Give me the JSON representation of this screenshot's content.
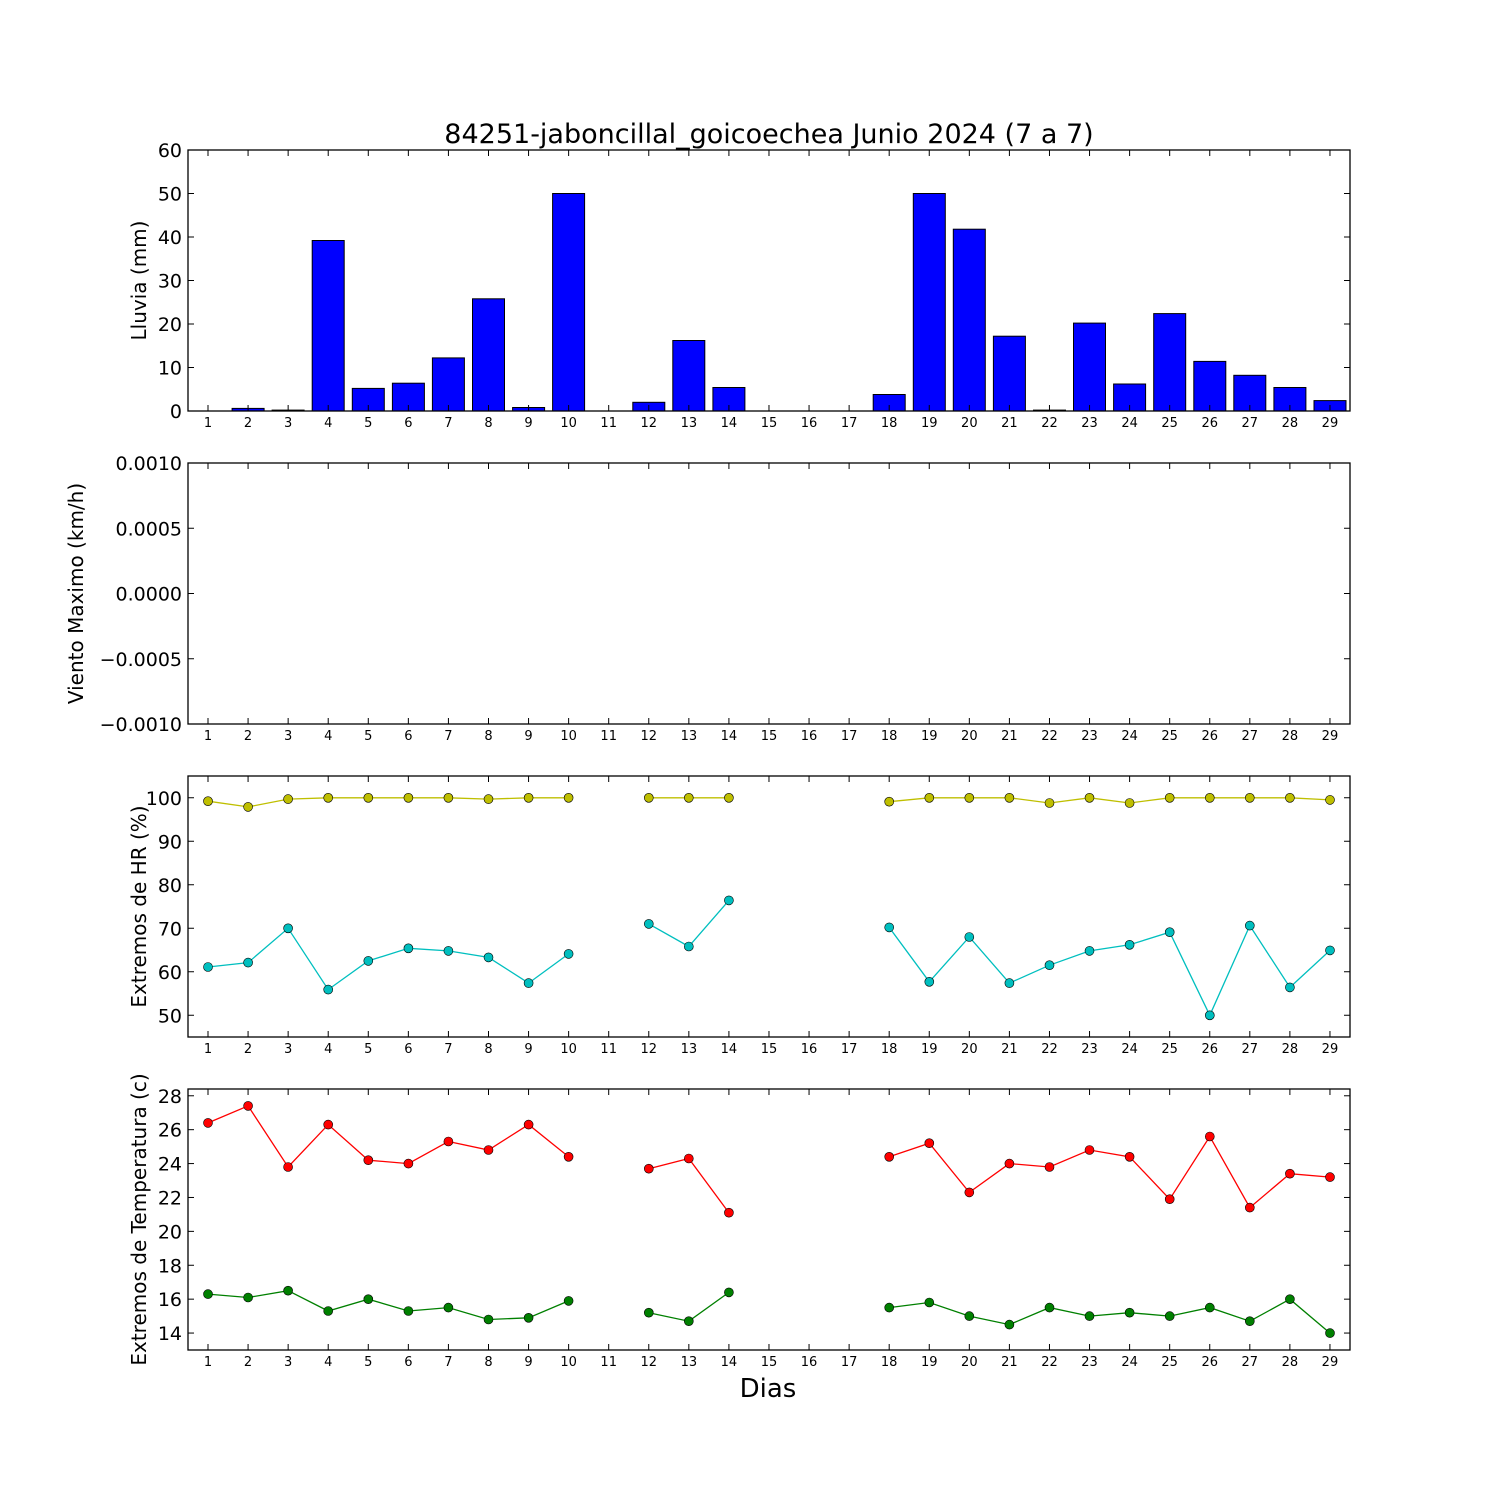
{
  "title": "84251-jaboncillal_goicoechea Junio 2024  (7 a 7)",
  "xlabel": "Dias",
  "chart_data": [
    {
      "type": "bar",
      "ylabel": "Lluvia (mm)",
      "ylim": [
        0,
        60
      ],
      "yticks": [
        "0",
        "10",
        "20",
        "30",
        "40",
        "50",
        "60"
      ],
      "categories": [
        "1",
        "2",
        "3",
        "4",
        "5",
        "6",
        "7",
        "8",
        "9",
        "10",
        "11",
        "12",
        "13",
        "14",
        "15",
        "16",
        "17",
        "18",
        "19",
        "20",
        "21",
        "22",
        "23",
        "24",
        "25",
        "26",
        "27",
        "28",
        "29"
      ],
      "values": [
        0,
        0.6,
        0.2,
        39.2,
        5.2,
        6.4,
        12.2,
        25.8,
        0.8,
        50.0,
        0,
        2.0,
        16.2,
        5.4,
        0,
        0,
        0,
        3.8,
        50.0,
        41.8,
        17.2,
        0.2,
        20.2,
        6.2,
        22.4,
        11.4,
        8.2,
        5.4,
        2.4
      ],
      "color": "#0000ff"
    },
    {
      "type": "line",
      "ylabel": "Viento Maximo (km/h)",
      "ylim": [
        -0.001,
        0.001
      ],
      "yticks": [
        "−0.0010",
        "−0.0005",
        "0.0000",
        "0.0005",
        "0.0010"
      ],
      "categories": [
        "1",
        "2",
        "3",
        "4",
        "5",
        "6",
        "7",
        "8",
        "9",
        "10",
        "11",
        "12",
        "13",
        "14",
        "15",
        "16",
        "17",
        "18",
        "19",
        "20",
        "21",
        "22",
        "23",
        "24",
        "25",
        "26",
        "27",
        "28",
        "29"
      ],
      "series": []
    },
    {
      "type": "line",
      "ylabel": "Extremos de HR (%)",
      "ylim": [
        45,
        105
      ],
      "yticks": [
        "50",
        "60",
        "70",
        "80",
        "90",
        "100"
      ],
      "categories": [
        "1",
        "2",
        "3",
        "4",
        "5",
        "6",
        "7",
        "8",
        "9",
        "10",
        "11",
        "12",
        "13",
        "14",
        "15",
        "16",
        "17",
        "18",
        "19",
        "20",
        "21",
        "22",
        "23",
        "24",
        "25",
        "26",
        "27",
        "28",
        "29"
      ],
      "series": [
        {
          "color": "#bfbf00",
          "values": [
            99.2,
            97.9,
            99.7,
            100,
            100,
            100,
            100,
            99.7,
            100,
            100,
            null,
            100,
            100,
            100,
            null,
            null,
            null,
            99.1,
            100,
            100,
            100,
            98.8,
            100,
            98.8,
            100,
            100,
            100,
            100,
            99.5
          ]
        },
        {
          "color": "#00bfbf",
          "values": [
            61.1,
            62.1,
            70.0,
            55.9,
            62.5,
            65.4,
            64.8,
            63.3,
            57.4,
            64.1,
            null,
            71.0,
            65.8,
            76.4,
            null,
            null,
            null,
            70.2,
            57.7,
            68.0,
            57.4,
            61.5,
            64.8,
            66.2,
            69.1,
            50.0,
            70.6,
            56.4,
            64.9
          ]
        }
      ]
    },
    {
      "type": "line",
      "ylabel": "Extremos de Temperatura (c)",
      "ylim": [
        13,
        28.4
      ],
      "yticks": [
        "14",
        "16",
        "18",
        "20",
        "22",
        "24",
        "26",
        "28"
      ],
      "categories": [
        "1",
        "2",
        "3",
        "4",
        "5",
        "6",
        "7",
        "8",
        "9",
        "10",
        "11",
        "12",
        "13",
        "14",
        "15",
        "16",
        "17",
        "18",
        "19",
        "20",
        "21",
        "22",
        "23",
        "24",
        "25",
        "26",
        "27",
        "28",
        "29"
      ],
      "series": [
        {
          "color": "#ff0000",
          "values": [
            26.4,
            27.4,
            23.8,
            26.3,
            24.2,
            24.0,
            25.3,
            24.8,
            26.3,
            24.4,
            null,
            23.7,
            24.3,
            21.1,
            null,
            null,
            null,
            24.4,
            25.2,
            22.3,
            24.0,
            23.8,
            24.8,
            24.4,
            21.9,
            25.6,
            21.4,
            23.4,
            23.2
          ]
        },
        {
          "color": "#008000",
          "values": [
            16.3,
            16.1,
            16.5,
            15.3,
            16.0,
            15.3,
            15.5,
            14.8,
            14.9,
            15.9,
            null,
            15.2,
            14.7,
            16.4,
            null,
            null,
            null,
            15.5,
            15.8,
            15.0,
            14.5,
            15.5,
            15.0,
            15.2,
            15.0,
            15.5,
            14.7,
            16.0,
            14.0
          ]
        }
      ]
    }
  ]
}
